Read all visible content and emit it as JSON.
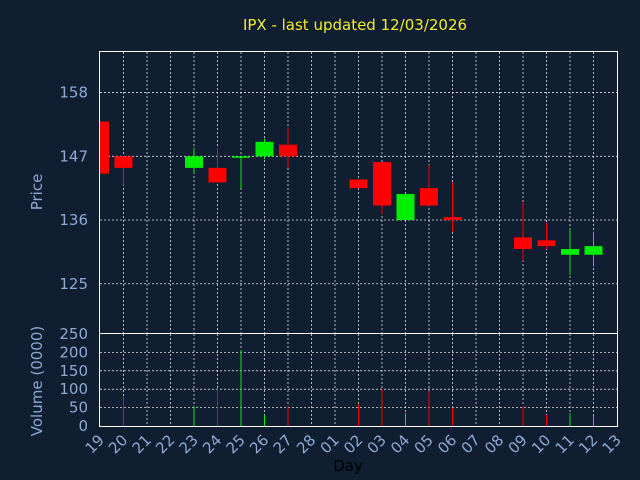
{
  "chart_data": {
    "type": "candlestick",
    "title": "IPX - last updated 12/03/2026",
    "xlabel": "Day",
    "price_panel": {
      "ylabel": "Price",
      "yticks": [
        125,
        136,
        147,
        158
      ],
      "ylim": [
        116.5,
        165
      ]
    },
    "volume_panel": {
      "ylabel": "Volume (0000)",
      "yticks": [
        0,
        50,
        100,
        150,
        200,
        250
      ],
      "ylim": [
        0,
        250
      ]
    },
    "x_ticks": [
      "19",
      "20",
      "21",
      "22",
      "23",
      "24",
      "25",
      "26",
      "27",
      "28",
      "01",
      "02",
      "03",
      "04",
      "05",
      "06",
      "07",
      "08",
      "09",
      "10",
      "11",
      "12",
      "13"
    ],
    "up_color": "#00ee00",
    "down_color": "#ff0000",
    "candles": [
      {
        "day": "19",
        "open": 153.0,
        "close": 144.0,
        "high": 153.0,
        "low": 144.0,
        "volume": 0
      },
      {
        "day": "20",
        "open": 147.0,
        "close": 145.0,
        "high": 147.0,
        "low": 142.0,
        "volume": 80
      },
      {
        "day": "23",
        "open": 145.0,
        "close": 147.0,
        "high": 148.5,
        "low": 144.0,
        "volume": 55
      },
      {
        "day": "24",
        "open": 145.0,
        "close": 142.5,
        "high": 148.5,
        "low": 142.5,
        "volume": 100
      },
      {
        "day": "25",
        "open": 147.0,
        "close": 147.0,
        "high": 147.0,
        "low": 141.5,
        "volume": 205
      },
      {
        "day": "26",
        "open": 147.0,
        "close": 149.5,
        "high": 150.0,
        "low": 146.5,
        "volume": 30
      },
      {
        "day": "27",
        "open": 149.0,
        "close": 147.0,
        "high": 152.0,
        "low": 145.0,
        "volume": 55
      },
      {
        "day": "02",
        "open": 143.0,
        "close": 141.5,
        "high": 143.0,
        "low": 141.5,
        "volume": 60
      },
      {
        "day": "03",
        "open": 146.0,
        "close": 138.5,
        "high": 146.0,
        "low": 137.0,
        "volume": 100
      },
      {
        "day": "04",
        "open": 136.0,
        "close": 140.5,
        "high": 140.5,
        "low": 136.0,
        "volume": 35
      },
      {
        "day": "05",
        "open": 141.5,
        "close": 138.5,
        "high": 145.5,
        "low": 138.5,
        "volume": 95
      },
      {
        "day": "06",
        "open": 136.5,
        "close": 136.0,
        "high": 142.5,
        "low": 134.0,
        "volume": 50
      },
      {
        "day": "09",
        "open": 133.0,
        "close": 131.0,
        "high": 139.0,
        "low": 129.0,
        "volume": 55
      },
      {
        "day": "10",
        "open": 132.5,
        "close": 131.5,
        "high": 135.5,
        "low": 131.0,
        "volume": 30
      },
      {
        "day": "11",
        "open": 130.0,
        "close": 131.0,
        "high": 134.5,
        "low": 126.5,
        "volume": 35
      },
      {
        "day": "12",
        "open": 130.0,
        "close": 131.5,
        "high": 134.0,
        "low": 128.0,
        "volume": 28
      }
    ]
  }
}
